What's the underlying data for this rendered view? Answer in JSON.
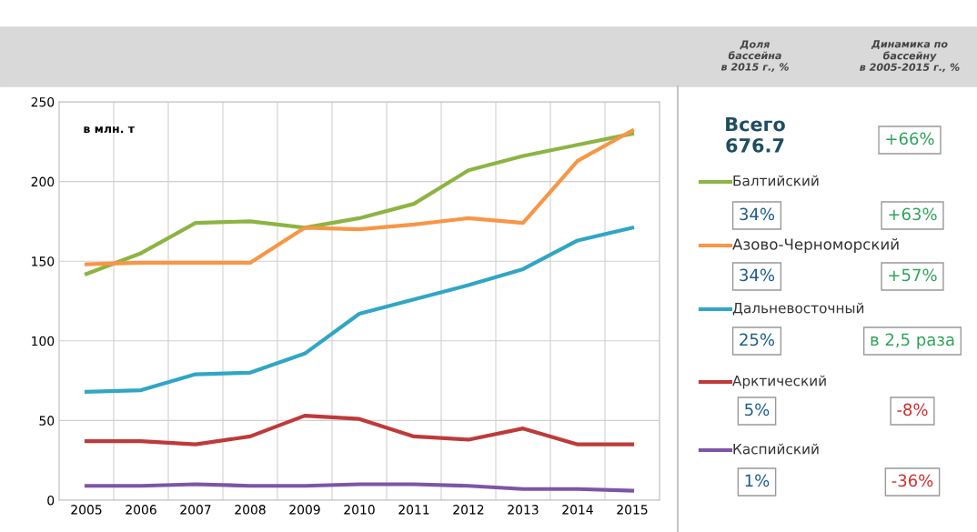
{
  "chart_data": {
    "type": "line",
    "categories": [
      "2005",
      "2006",
      "2007",
      "2008",
      "2009",
      "2010",
      "2011",
      "2012",
      "2013",
      "2014",
      "2015"
    ],
    "series": [
      {
        "name": "Балтийский",
        "color": "#8db443",
        "values": [
          142,
          155,
          174,
          175,
          171,
          177,
          186,
          207,
          216,
          223,
          230
        ]
      },
      {
        "name": "Азово-Черноморский",
        "color": "#f79646",
        "values": [
          148,
          149,
          149,
          149,
          171,
          170,
          173,
          177,
          174,
          213,
          232
        ]
      },
      {
        "name": "Дальневосточный",
        "color": "#31a6c4",
        "values": [
          68,
          69,
          79,
          80,
          92,
          117,
          126,
          135,
          145,
          163,
          171
        ]
      },
      {
        "name": "Арктический",
        "color": "#be3a3a",
        "values": [
          37,
          37,
          35,
          40,
          53,
          51,
          40,
          38,
          45,
          35,
          35
        ]
      },
      {
        "name": "Каспийский",
        "color": "#7d55a6",
        "values": [
          9,
          9,
          10,
          9,
          9,
          10,
          10,
          9,
          7,
          7,
          6
        ]
      }
    ],
    "ylim": [
      0,
      250
    ],
    "yticks": [
      0,
      50,
      100,
      150,
      200,
      250
    ],
    "grid": true,
    "legend": "right",
    "marker": "none",
    "line_style": "solid",
    "annotations": [
      "в млн. т",
      "Доля\nбассейна\nв 2015 г., %",
      "Динамика по\nбассейну\nв 2005-2015 г., %",
      "Всего\n676.7",
      "+66%",
      "34%",
      "+63%",
      "34%",
      "+57%",
      "25%",
      "в 2,5 раза",
      "5%",
      "-8%",
      "1%",
      "-36%"
    ]
  }
}
